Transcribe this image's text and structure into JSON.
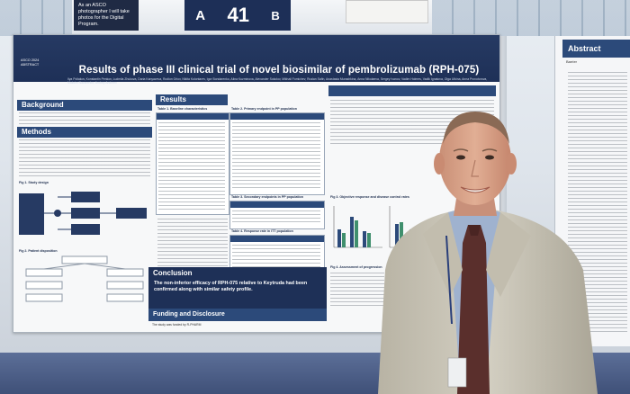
{
  "background": {
    "sign_asco": "As an ASCO photographer I will take photos for the Digital Program.",
    "board_letter_left": "A",
    "board_number": "41",
    "board_letter_right": "B"
  },
  "poster": {
    "title": "Results of phase III clinical trial of novel biosimilar of pembrolizumab (RPH-075)",
    "logo_text": "ASCO 2024 ABSTRACT",
    "authors": "Ilya Poliakov, Konstantin Penkov, Ludmila Zhukova, Daria Kanyazeva, Rodion Orlov, Nikita Kolontarev, Igor Bondarenko, Alina Kuzminova, Alexander Sokolov, Mikhail Fomichev, Ruslan Safin, Anastasia Murashkina, Anna Nikolaeva, Sergey Ivanov, Vadim Holmes, Vadik Ignatova, Olga Utkina, Anna Provotorova, Maksim Nazarenko, Andrey Andreev",
    "sections": {
      "background": "Background",
      "methods": "Methods",
      "results": "Results",
      "conclusion": "Conclusion",
      "funding": "Funding and Disclosure"
    },
    "conclusion_text": "The non-inferior efficacy of RPH-075 relative to Keytruda had been confirmed along with similar safety profile.",
    "funding_text": "The study was funded by R-PHARM",
    "captions": {
      "table1": "Table 1. Baseline characteristics",
      "table2": "Table 2. Primary endpoint in PP population",
      "table3": "Table 3. Secondary endpoints in PP population",
      "table4": "Table 4. Response rate in ITT population",
      "fig1": "Fig 1. Study design",
      "fig2": "Fig 2. Patient disposition",
      "fig3": "Fig 3. Objective response and disease control rates",
      "fig4": "Fig 4. Assessment of progression"
    }
  },
  "right_poster": {
    "heading": "Abstract",
    "sub": "Barrier"
  },
  "colors": {
    "poster_navy": "#1e3057",
    "section_blue": "#2c4a7a",
    "suit": "#c9c4b6",
    "tie": "#5a2f2c",
    "floor": "#4a5b85"
  }
}
